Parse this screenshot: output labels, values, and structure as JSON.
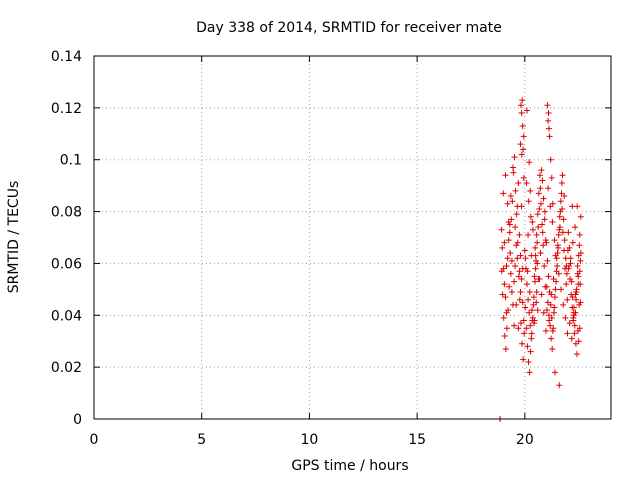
{
  "chart_data": {
    "type": "scatter",
    "title": "Day 338 of 2014, SRMTID for receiver mate",
    "xlabel": "GPS time / hours",
    "ylabel": "SRMTID / TECUs",
    "xlim": [
      0,
      24
    ],
    "ylim": [
      0,
      0.14
    ],
    "xticks": [
      0,
      5,
      10,
      15,
      20
    ],
    "yticks": [
      0,
      0.02,
      0.04,
      0.06,
      0.08,
      0.1,
      0.12,
      0.14
    ],
    "xtick_labels": [
      "0",
      "5",
      "10",
      "15",
      "20"
    ],
    "ytick_labels": [
      "0",
      "0.02",
      "0.04",
      "0.06",
      "0.08",
      "0.1",
      "0.12",
      "0.14"
    ],
    "grid": true,
    "marker": "+",
    "series": [
      {
        "name": "SRMTID",
        "color": "#e00000",
        "x": [
          18.85,
          18.85,
          18.92,
          18.95,
          19.0,
          19.05,
          19.1,
          19.15,
          19.2,
          19.25,
          19.3,
          19.35,
          19.4,
          19.45,
          19.5,
          19.55,
          19.6,
          19.65,
          19.7,
          19.75,
          19.8,
          19.85,
          19.9,
          19.95,
          18.93,
          18.97,
          19.02,
          19.07,
          19.12,
          19.17,
          19.22,
          19.27,
          19.32,
          19.37,
          19.42,
          19.47,
          19.52,
          19.57,
          19.62,
          19.67,
          19.72,
          19.77,
          19.82,
          19.87,
          19.92,
          19.97,
          19.0,
          19.1,
          19.2,
          19.3,
          19.4,
          19.5,
          19.6,
          19.7,
          19.8,
          19.9,
          19.05,
          19.15,
          19.25,
          19.35,
          19.45,
          19.55,
          19.65,
          19.75,
          19.85,
          19.95,
          19.82,
          19.88,
          19.85,
          19.9,
          19.95,
          19.8,
          19.86,
          19.92,
          20.0,
          20.05,
          20.1,
          20.15,
          20.2,
          20.25,
          20.3,
          20.35,
          20.4,
          20.45,
          20.5,
          20.55,
          20.6,
          20.65,
          20.7,
          20.75,
          20.8,
          20.85,
          20.9,
          20.95,
          20.02,
          20.07,
          20.12,
          20.17,
          20.22,
          20.27,
          20.32,
          20.37,
          20.42,
          20.47,
          20.52,
          20.57,
          20.62,
          20.67,
          20.72,
          20.77,
          20.82,
          20.87,
          20.92,
          20.97,
          20.03,
          20.13,
          20.23,
          20.33,
          20.43,
          20.53,
          20.63,
          20.73,
          20.83,
          20.93,
          20.08,
          20.18,
          20.28,
          20.38,
          20.48,
          20.58,
          20.68,
          20.78,
          20.88,
          20.98,
          20.1,
          20.2,
          20.25,
          20.35,
          20.5,
          20.6,
          20.15,
          20.3,
          20.45,
          20.55,
          21.0,
          21.05,
          21.1,
          21.15,
          21.2,
          21.25,
          21.3,
          21.35,
          21.4,
          21.45,
          21.5,
          21.55,
          21.6,
          21.65,
          21.7,
          21.75,
          21.8,
          21.85,
          21.9,
          21.95,
          21.02,
          21.07,
          21.12,
          21.17,
          21.22,
          21.27,
          21.32,
          21.37,
          21.42,
          21.47,
          21.52,
          21.57,
          21.62,
          21.67,
          21.72,
          21.77,
          21.82,
          21.87,
          21.92,
          21.97,
          21.03,
          21.13,
          21.23,
          21.33,
          21.43,
          21.53,
          21.63,
          21.73,
          21.83,
          21.93,
          21.08,
          21.18,
          21.28,
          21.38,
          21.48,
          21.58,
          21.68,
          21.78,
          21.88,
          21.98,
          21.05,
          21.1,
          21.08,
          21.12,
          21.15,
          21.2,
          21.25,
          21.3,
          21.6,
          21.4,
          22.0,
          22.05,
          22.1,
          22.15,
          22.2,
          22.25,
          22.3,
          22.35,
          22.4,
          22.45,
          22.5,
          22.55,
          22.6,
          22.02,
          22.07,
          22.12,
          22.17,
          22.22,
          22.27,
          22.32,
          22.37,
          22.42,
          22.47,
          22.52,
          22.57,
          22.03,
          22.13,
          22.23,
          22.33,
          22.43,
          22.53,
          22.58,
          22.48,
          22.38,
          22.28,
          22.08,
          22.18,
          22.28,
          22.38,
          22.48,
          22.55,
          22.6,
          22.45,
          22.35,
          22.25,
          22.2,
          22.55,
          22.58,
          22.5,
          22.4
        ],
        "y": [
          0.0,
          0.0,
          0.073,
          0.066,
          0.058,
          0.052,
          0.047,
          0.041,
          0.062,
          0.069,
          0.075,
          0.056,
          0.049,
          0.044,
          0.036,
          0.059,
          0.067,
          0.082,
          0.091,
          0.071,
          0.063,
          0.054,
          0.045,
          0.038,
          0.057,
          0.048,
          0.039,
          0.032,
          0.027,
          0.035,
          0.042,
          0.051,
          0.064,
          0.077,
          0.084,
          0.095,
          0.101,
          0.088,
          0.079,
          0.068,
          0.055,
          0.046,
          0.037,
          0.029,
          0.023,
          0.033,
          0.087,
          0.094,
          0.083,
          0.072,
          0.061,
          0.053,
          0.044,
          0.035,
          0.049,
          0.058,
          0.068,
          0.059,
          0.076,
          0.086,
          0.097,
          0.074,
          0.062,
          0.057,
          0.082,
          0.093,
          0.121,
          0.123,
          0.118,
          0.113,
          0.109,
          0.106,
          0.102,
          0.104,
          0.065,
          0.058,
          0.052,
          0.046,
          0.041,
          0.036,
          0.031,
          0.038,
          0.044,
          0.055,
          0.063,
          0.071,
          0.079,
          0.087,
          0.094,
          0.083,
          0.075,
          0.067,
          0.059,
          0.051,
          0.043,
          0.035,
          0.028,
          0.022,
          0.018,
          0.026,
          0.033,
          0.039,
          0.047,
          0.053,
          0.061,
          0.068,
          0.074,
          0.081,
          0.089,
          0.096,
          0.092,
          0.085,
          0.077,
          0.069,
          0.062,
          0.057,
          0.049,
          0.042,
          0.037,
          0.045,
          0.054,
          0.064,
          0.072,
          0.08,
          0.091,
          0.084,
          0.078,
          0.073,
          0.066,
          0.06,
          0.054,
          0.048,
          0.041,
          0.034,
          0.119,
          0.099,
          0.088,
          0.076,
          0.058,
          0.042,
          0.071,
          0.063,
          0.038,
          0.049,
          0.068,
          0.061,
          0.055,
          0.049,
          0.044,
          0.039,
          0.034,
          0.041,
          0.047,
          0.053,
          0.059,
          0.066,
          0.073,
          0.08,
          0.087,
          0.094,
          0.077,
          0.069,
          0.062,
          0.056,
          0.051,
          0.045,
          0.04,
          0.036,
          0.031,
          0.027,
          0.035,
          0.043,
          0.05,
          0.057,
          0.064,
          0.071,
          0.078,
          0.084,
          0.091,
          0.072,
          0.065,
          0.058,
          0.052,
          0.046,
          0.042,
          0.038,
          0.048,
          0.054,
          0.063,
          0.067,
          0.074,
          0.081,
          0.086,
          0.059,
          0.089,
          0.082,
          0.076,
          0.069,
          0.062,
          0.056,
          0.05,
          0.044,
          0.039,
          0.033,
          0.121,
          0.118,
          0.115,
          0.112,
          0.109,
          0.1,
          0.093,
          0.083,
          0.013,
          0.018,
          0.065,
          0.059,
          0.054,
          0.048,
          0.043,
          0.038,
          0.033,
          0.041,
          0.049,
          0.056,
          0.063,
          0.071,
          0.078,
          0.072,
          0.066,
          0.06,
          0.053,
          0.047,
          0.041,
          0.036,
          0.029,
          0.025,
          0.034,
          0.044,
          0.052,
          0.058,
          0.062,
          0.068,
          0.074,
          0.082,
          0.067,
          0.061,
          0.055,
          0.049,
          0.043,
          0.037,
          0.031,
          0.04,
          0.046,
          0.052,
          0.057,
          0.064,
          0.059,
          0.048,
          0.039,
          0.082,
          0.035,
          0.045,
          0.03,
          0.05
        ]
      }
    ]
  }
}
